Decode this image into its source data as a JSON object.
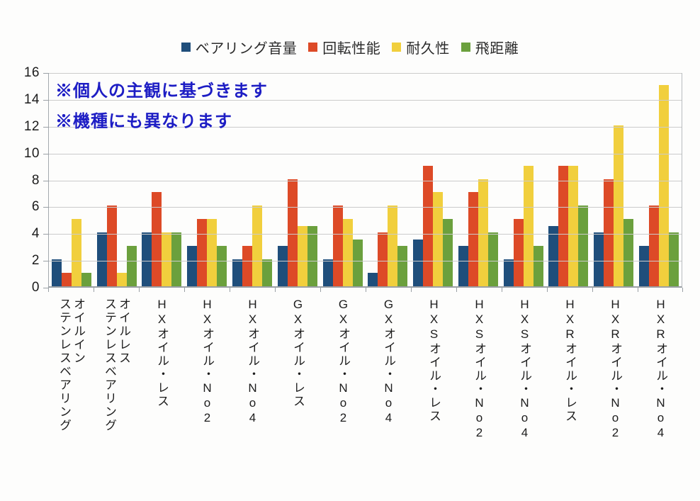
{
  "chart_data": {
    "type": "bar",
    "title": "",
    "xlabel": "",
    "ylabel": "",
    "categories": [
      "オイルイン\nステンレスベアリング",
      "オイルレス\nステンレスベアリング",
      "HXオイル・レス",
      "HXオイル・No2",
      "HXオイル・No4",
      "GXオイル・レス",
      "GXオイル・No2",
      "GXオイル・No4",
      "HXSオイル・レス",
      "HXSオイル・No2",
      "HXSオイル・No4",
      "HXRオイル・レス",
      "HXRオイル・No2",
      "HXRオイル・No4"
    ],
    "series": [
      {
        "name": "ベアリング音量",
        "color": "#1f4e7b",
        "values": [
          2,
          4,
          4,
          3,
          2,
          3,
          2,
          1,
          3.5,
          3,
          2,
          4.5,
          4,
          3
        ]
      },
      {
        "name": "回転性能",
        "color": "#dd4a27",
        "values": [
          1,
          6,
          7,
          5,
          3,
          8,
          6,
          4,
          9,
          7,
          5,
          9,
          8,
          6
        ]
      },
      {
        "name": "耐久性",
        "color": "#f1cf3d",
        "values": [
          5,
          1,
          4,
          5,
          6,
          4.5,
          5,
          6,
          7,
          8,
          9,
          9,
          12,
          15
        ]
      },
      {
        "name": "飛距離",
        "color": "#6ba03d",
        "values": [
          1,
          3,
          4,
          3,
          2,
          4.5,
          3.5,
          3,
          5,
          4,
          3,
          6,
          5,
          4
        ]
      }
    ],
    "ylim": [
      0,
      16
    ],
    "yticks": [
      0,
      2,
      4,
      6,
      8,
      10,
      12,
      14,
      16
    ],
    "grid": true,
    "legend_position": "top",
    "annotations": [
      "※個人の主観に基づきます",
      "※機種にも異なります"
    ],
    "annotation_color": "#1d1dc4"
  }
}
